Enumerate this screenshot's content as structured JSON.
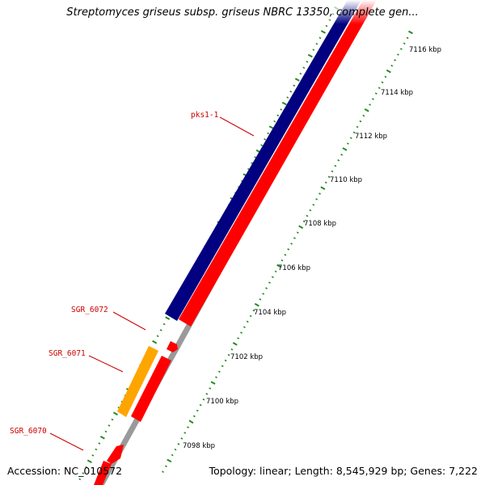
{
  "title": "Streptomyces griseus subsp. griseus NBRC 13350, complete gen...",
  "footer": {
    "accession": "Accession: NC_010572",
    "summary": "Topology: linear; Length: 8,545,929 bp; Genes: 7,222"
  },
  "genes": [
    {
      "name": "pks1-1",
      "color": "#000080",
      "feature": "navy-gene-bar"
    },
    {
      "name": "SGR_6072",
      "color": "#ff0000",
      "feature": "red-gene-arrow"
    },
    {
      "name": "SGR_6071",
      "color": "#ffa500",
      "feature": "orange-gene-bar"
    },
    {
      "name": "SGR_6070",
      "color": "#ff0000",
      "feature": "red-gene-arrow"
    }
  ],
  "ruler": {
    "labels": [
      "7098 kbp",
      "7100 kbp",
      "7102 kbp",
      "7104 kbp",
      "7106 kbp",
      "7108 kbp",
      "7110 kbp",
      "7112 kbp",
      "7114 kbp",
      "7116 kbp"
    ]
  },
  "colors": {
    "forward_strand": "#000080",
    "reverse_strand": "#ff0000",
    "highlight": "#ffa500",
    "backbone": "#999999",
    "tick": "#228b22",
    "label": "#cc0000"
  }
}
